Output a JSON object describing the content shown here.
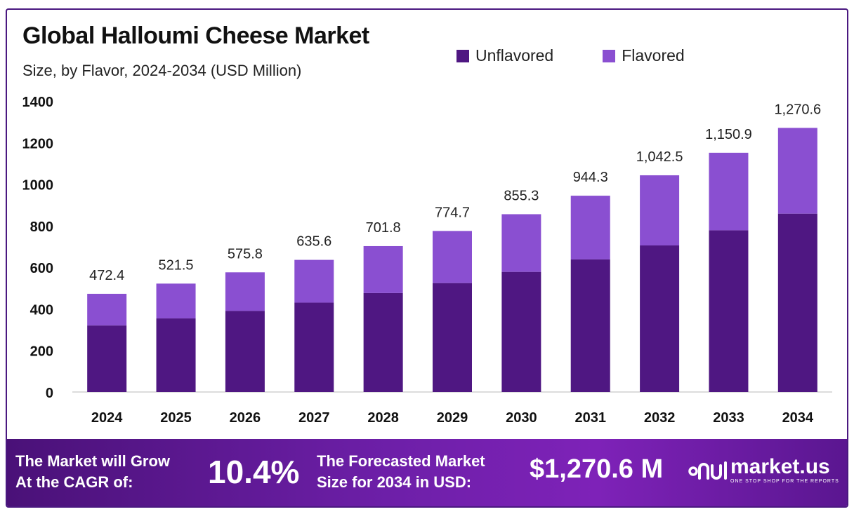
{
  "header": {
    "title": "Global Halloumi Cheese Market",
    "subtitle": "Size, by Flavor, 2024-2034 (USD Million)"
  },
  "legend": [
    {
      "label": "Unflavored",
      "color": "#4f1782"
    },
    {
      "label": "Flavored",
      "color": "#8a4fd1"
    }
  ],
  "chart_data": {
    "type": "bar",
    "stacked": true,
    "categories": [
      "2024",
      "2025",
      "2026",
      "2027",
      "2028",
      "2029",
      "2030",
      "2031",
      "2032",
      "2033",
      "2034"
    ],
    "series": [
      {
        "name": "Unflavored",
        "color": "#4f1782",
        "values": [
          320,
          354,
          390,
          430,
          476,
          524,
          578,
          638,
          705,
          778,
          858
        ]
      },
      {
        "name": "Flavored",
        "color": "#8a4fd1",
        "values": [
          152.4,
          167.5,
          185.8,
          205.6,
          225.8,
          250.7,
          277.3,
          306.3,
          337.5,
          372.9,
          412.6
        ]
      }
    ],
    "total_labels": [
      "472.4",
      "521.5",
      "575.8",
      "635.6",
      "701.8",
      "774.7",
      "855.3",
      "944.3",
      "1,042.5",
      "1,150.9",
      "1,270.6"
    ],
    "totals": [
      472.4,
      521.5,
      575.8,
      635.6,
      701.8,
      774.7,
      855.3,
      944.3,
      1042.5,
      1150.9,
      1270.6
    ],
    "y_ticks": [
      0,
      200,
      400,
      600,
      800,
      1000,
      1200,
      1400
    ],
    "ylim": [
      0,
      1400
    ],
    "grid": false,
    "legend_position": "top-right"
  },
  "footer": {
    "cagr_label_line1": "The Market will Grow",
    "cagr_label_line2": "At the CAGR of:",
    "cagr_value": "10.4%",
    "forecast_label_line1": "The Forecasted Market",
    "forecast_label_line2": "Size for 2034 in USD:",
    "forecast_value": "$1,270.6 M",
    "brand_name": "market.us",
    "brand_tagline": "ONE STOP SHOP FOR THE REPORTS"
  }
}
